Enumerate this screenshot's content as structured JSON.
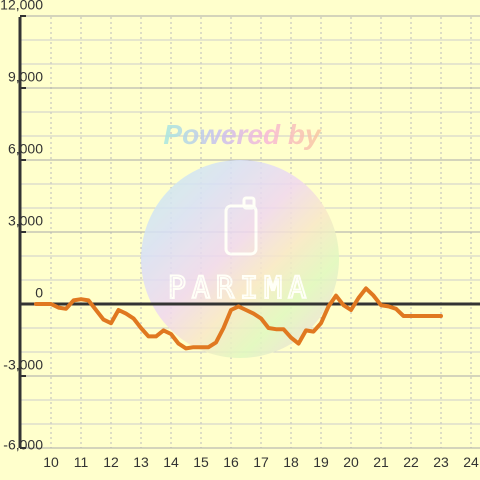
{
  "chart_data": {
    "type": "line",
    "title": "",
    "xlabel": "",
    "ylabel": "",
    "xlim": [
      9.5,
      24.2
    ],
    "ylim": [
      -6000,
      12000
    ],
    "x_ticks": [
      10,
      11,
      12,
      13,
      14,
      15,
      16,
      17,
      18,
      19,
      20,
      21,
      22,
      23,
      24
    ],
    "y_ticks": [
      -6000,
      -3000,
      0,
      3000,
      6000,
      9000,
      12000
    ],
    "y_tick_labels": [
      "-6,000",
      "-3,000",
      "0",
      "3,000",
      "6,000",
      "9,000",
      "12,000"
    ],
    "grid": true,
    "series": [
      {
        "name": "",
        "color": "#e07820",
        "x": [
          9.5,
          10.0,
          10.25,
          10.5,
          10.75,
          11.0,
          11.25,
          11.5,
          11.75,
          12.0,
          12.25,
          12.5,
          12.75,
          13.0,
          13.25,
          13.5,
          13.75,
          14.0,
          14.25,
          14.5,
          14.75,
          15.0,
          15.25,
          15.5,
          15.75,
          16.0,
          16.25,
          16.5,
          16.75,
          17.0,
          17.25,
          17.5,
          17.75,
          18.0,
          18.25,
          18.5,
          18.75,
          19.0,
          19.25,
          19.5,
          19.75,
          20.0,
          20.25,
          20.5,
          20.75,
          21.0,
          21.25,
          21.5,
          21.75,
          22.0,
          22.25,
          22.5,
          22.75,
          23.0
        ],
        "values": [
          0,
          0,
          -150,
          -200,
          150,
          200,
          150,
          -250,
          -650,
          -800,
          -250,
          -400,
          -600,
          -1000,
          -1350,
          -1350,
          -1100,
          -1250,
          -1650,
          -1850,
          -1800,
          -1800,
          -1800,
          -1600,
          -1000,
          -250,
          -100,
          -250,
          -400,
          -600,
          -1000,
          -1050,
          -1050,
          -1400,
          -1650,
          -1100,
          -1150,
          -800,
          -100,
          350,
          -50,
          -250,
          250,
          650,
          350,
          -50,
          -100,
          -200,
          -500,
          -500,
          -500,
          -500,
          -500,
          -500
        ]
      }
    ]
  },
  "watermark": {
    "line1": "Powered by",
    "name": "PARIMA"
  },
  "colors": {
    "background": "#ffffcc",
    "grid": "#bbbbbb",
    "axis": "#333333",
    "line": "#e07820"
  }
}
